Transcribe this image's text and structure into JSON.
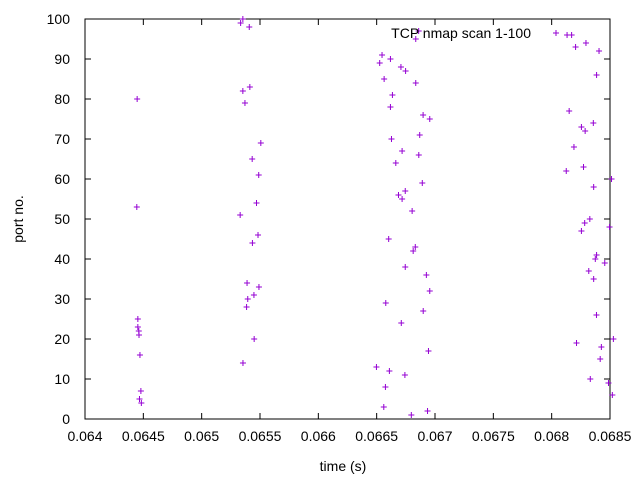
{
  "chart_data": {
    "type": "scatter",
    "title": "",
    "xlabel": "time (s)",
    "ylabel": "port no.",
    "xlim": [
      0.064,
      0.0685
    ],
    "ylim": [
      0,
      100
    ],
    "xticks": [
      "0.064",
      "0.0645",
      "0.065",
      "0.0655",
      "0.066",
      "0.0665",
      "0.067",
      "0.0675",
      "0.068",
      "0.0685"
    ],
    "yticks": [
      "0",
      "10",
      "20",
      "30",
      "40",
      "50",
      "60",
      "70",
      "80",
      "90",
      "100"
    ],
    "grid": false,
    "legend_position": "top-right",
    "marker": "+",
    "series": [
      {
        "name": "TCP nmap scan 1-100",
        "color": "#9400d3",
        "points": [
          [
            0.064444,
            53
          ],
          [
            0.064447,
            80
          ],
          [
            0.064453,
            25
          ],
          [
            0.064453,
            23
          ],
          [
            0.064461,
            22
          ],
          [
            0.064463,
            21
          ],
          [
            0.064471,
            16
          ],
          [
            0.064467,
            5
          ],
          [
            0.064479,
            7
          ],
          [
            0.064483,
            4
          ],
          [
            0.065334,
            99
          ],
          [
            0.065353,
            100
          ],
          [
            0.065408,
            98
          ],
          [
            0.065353,
            82
          ],
          [
            0.065413,
            83
          ],
          [
            0.065371,
            79
          ],
          [
            0.065507,
            69
          ],
          [
            0.065433,
            65
          ],
          [
            0.065489,
            61
          ],
          [
            0.06547,
            54
          ],
          [
            0.06533,
            51
          ],
          [
            0.065483,
            46
          ],
          [
            0.065435,
            44
          ],
          [
            0.065389,
            34
          ],
          [
            0.065491,
            33
          ],
          [
            0.065448,
            31
          ],
          [
            0.065395,
            30
          ],
          [
            0.065385,
            28
          ],
          [
            0.06545,
            20
          ],
          [
            0.065354,
            14
          ],
          [
            0.066546,
            91
          ],
          [
            0.066526,
            89
          ],
          [
            0.066618,
            90
          ],
          [
            0.066708,
            88
          ],
          [
            0.066748,
            87
          ],
          [
            0.066564,
            85
          ],
          [
            0.066835,
            84
          ],
          [
            0.066635,
            81
          ],
          [
            0.066618,
            78
          ],
          [
            0.066898,
            76
          ],
          [
            0.066955,
            75
          ],
          [
            0.066869,
            71
          ],
          [
            0.066627,
            70
          ],
          [
            0.066718,
            67
          ],
          [
            0.066861,
            66
          ],
          [
            0.066664,
            64
          ],
          [
            0.066891,
            59
          ],
          [
            0.066745,
            57
          ],
          [
            0.066687,
            56
          ],
          [
            0.066718,
            55
          ],
          [
            0.066804,
            52
          ],
          [
            0.066603,
            45
          ],
          [
            0.066831,
            43
          ],
          [
            0.066813,
            42
          ],
          [
            0.066745,
            38
          ],
          [
            0.066926,
            36
          ],
          [
            0.066955,
            32
          ],
          [
            0.066578,
            29
          ],
          [
            0.066899,
            27
          ],
          [
            0.066711,
            24
          ],
          [
            0.066944,
            17
          ],
          [
            0.066498,
            13
          ],
          [
            0.066609,
            12
          ],
          [
            0.066742,
            11
          ],
          [
            0.066575,
            8
          ],
          [
            0.066561,
            3
          ],
          [
            0.066797,
            1
          ],
          [
            0.066936,
            2
          ],
          [
            0.06686,
            97
          ],
          [
            0.066835,
            95
          ],
          [
            0.068132,
            96
          ],
          [
            0.068171,
            96
          ],
          [
            0.068205,
            93
          ],
          [
            0.068294,
            94
          ],
          [
            0.068406,
            92
          ],
          [
            0.068385,
            86
          ],
          [
            0.06815,
            77
          ],
          [
            0.068255,
            73
          ],
          [
            0.068357,
            74
          ],
          [
            0.068287,
            72
          ],
          [
            0.068191,
            68
          ],
          [
            0.068273,
            63
          ],
          [
            0.068125,
            62
          ],
          [
            0.068513,
            60
          ],
          [
            0.06836,
            58
          ],
          [
            0.068327,
            50
          ],
          [
            0.068283,
            49
          ],
          [
            0.068496,
            48
          ],
          [
            0.068255,
            47
          ],
          [
            0.068385,
            41
          ],
          [
            0.068374,
            40
          ],
          [
            0.068455,
            39
          ],
          [
            0.068318,
            37
          ],
          [
            0.06836,
            35
          ],
          [
            0.068384,
            26
          ],
          [
            0.068529,
            20
          ],
          [
            0.068213,
            19
          ],
          [
            0.068426,
            18
          ],
          [
            0.068416,
            15
          ],
          [
            0.068331,
            10
          ],
          [
            0.068487,
            9
          ],
          [
            0.06852,
            6
          ]
        ]
      }
    ]
  }
}
